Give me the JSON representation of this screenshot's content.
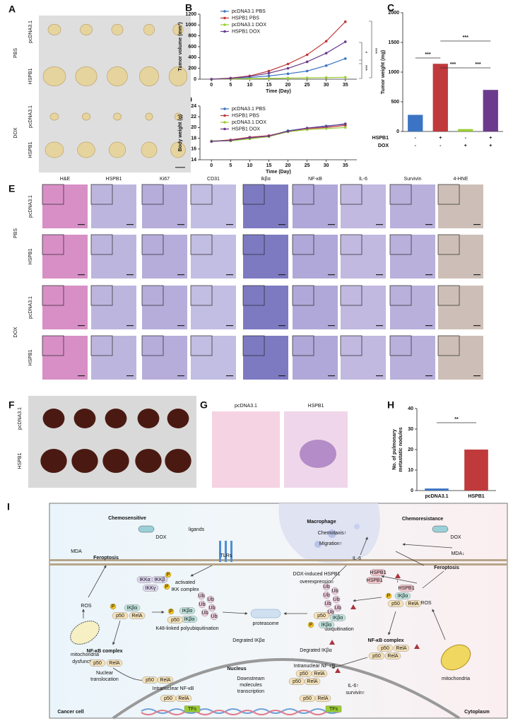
{
  "panels": [
    "A",
    "B",
    "C",
    "D",
    "E",
    "F",
    "G",
    "H",
    "I"
  ],
  "panel_a": {
    "treatments": [
      "PBS",
      "DOX"
    ],
    "groups": [
      "pcDNA3.1",
      "HSPB1",
      "pcDNA3.1",
      "HSPB1"
    ]
  },
  "panel_e": {
    "stains": [
      "H&E",
      "HSPB1",
      "Ki67",
      "CD31",
      "Ikβα",
      "NF-κB",
      "IL-6",
      "Survivin",
      "4-HNE"
    ],
    "treatments": [
      "PBS",
      "DOX"
    ],
    "groups": [
      "pcDNA3.1",
      "HSPB1",
      "pcDNA3.1",
      "HSPB1"
    ]
  },
  "panel_f": {
    "groups": [
      "pcDNA3.1",
      "HSPB1"
    ]
  },
  "panel_g": {
    "groups": [
      "pcDNA3.1",
      "HSPB1"
    ]
  },
  "chart_data": [
    {
      "type": "line",
      "ylabel": "Tumor volume (mm³)",
      "xlabel": "Time (Day)",
      "x": [
        0,
        5,
        10,
        15,
        20,
        25,
        30,
        35
      ],
      "xlim": [
        -3,
        38
      ],
      "xticks": [
        0,
        5,
        10,
        15,
        20,
        25,
        30,
        35
      ],
      "ylim": [
        0,
        1200
      ],
      "yticks": [
        0,
        200,
        400,
        600,
        800,
        1000,
        1200
      ],
      "series": [
        {
          "name": "pcDNA3.1 PBS",
          "color": "#3b74c4",
          "values": [
            0,
            10,
            30,
            60,
            100,
            150,
            250,
            380
          ]
        },
        {
          "name": "HSPB1 PBS",
          "color": "#c0393b",
          "values": [
            0,
            20,
            60,
            150,
            280,
            450,
            700,
            1060
          ]
        },
        {
          "name": "pcDNA3.1 DOX",
          "color": "#9acd32",
          "values": [
            0,
            5,
            10,
            15,
            20,
            25,
            30,
            35
          ]
        },
        {
          "name": "HSPB1 DOX",
          "color": "#6b3a8c",
          "values": [
            0,
            15,
            50,
            110,
            200,
            320,
            480,
            690
          ]
        }
      ],
      "annotations": [
        "*",
        "***",
        "***"
      ]
    },
    {
      "type": "bar",
      "ylabel": "Tumor weight (mg)",
      "ylim": [
        0,
        2000
      ],
      "yticks": [
        0,
        500,
        1000,
        1500,
        2000
      ],
      "values": [
        280,
        1140,
        40,
        700
      ],
      "colors": [
        "#3b74c4",
        "#c0393b",
        "#9acd32",
        "#6b3a8c"
      ],
      "rows": [
        {
          "name": "HSPB1",
          "signs": [
            "-",
            "+",
            "-",
            "+"
          ]
        },
        {
          "name": "DOX",
          "signs": [
            "-",
            "-",
            "+",
            "+"
          ]
        }
      ],
      "annotations": [
        "***",
        "***",
        "***",
        "***"
      ]
    },
    {
      "type": "line",
      "ylabel": "Body weight (g)",
      "xlabel": "Time (Day)",
      "x": [
        0,
        5,
        10,
        15,
        20,
        25,
        30,
        35
      ],
      "xlim": [
        -3,
        38
      ],
      "xticks": [
        0,
        5,
        10,
        15,
        20,
        25,
        30,
        35
      ],
      "ylim": [
        14,
        24
      ],
      "yticks": [
        14,
        16,
        18,
        20,
        22,
        24
      ],
      "series": [
        {
          "name": "pcDNA3.1 PBS",
          "color": "#3b74c4",
          "values": [
            17.5,
            17.6,
            18.0,
            18.4,
            19.4,
            19.9,
            20.3,
            20.6
          ]
        },
        {
          "name": "HSPB1 PBS",
          "color": "#c0393b",
          "values": [
            17.4,
            17.7,
            18.2,
            18.5,
            19.3,
            19.8,
            20.0,
            20.4
          ]
        },
        {
          "name": "pcDNA3.1 DOX",
          "color": "#9acd32",
          "values": [
            17.5,
            17.5,
            17.9,
            18.3,
            19.2,
            19.6,
            19.8,
            20.0
          ]
        },
        {
          "name": "HSPB1 DOX",
          "color": "#6b3a8c",
          "values": [
            17.4,
            17.6,
            18.1,
            18.4,
            19.3,
            19.9,
            20.2,
            20.7
          ]
        }
      ]
    },
    {
      "type": "bar",
      "ylabel": [
        "No. of pulmonary",
        "metastatic nodules"
      ],
      "categories": [
        "pcDNA3.1",
        "HSPB1"
      ],
      "ylim": [
        0,
        40
      ],
      "yticks": [
        0,
        10,
        20,
        30,
        40
      ],
      "values": [
        1,
        20
      ],
      "colors": [
        "#3b74c4",
        "#c0393b"
      ],
      "annotations": [
        "**"
      ]
    }
  ],
  "diagram": {
    "labels": [
      "Chemosensitive",
      "DOX",
      "MDA",
      "Feroptosis",
      "ligands",
      "TLRs",
      "Macrophage",
      "Chemotaxis↑",
      "Migration↑",
      "Chemoresistance",
      "DOX",
      "IL-6",
      "MDA↓",
      "Feroptosis",
      "activated",
      "IKK complex",
      "DOX-induced HSPB1",
      "overexpression",
      "ROS",
      "ROS",
      "K48-linked polyubiquitination",
      "proteasome",
      "ubiquitination",
      "Degrated IKβα",
      "Degrated IKβα",
      "NF-κB complex",
      "NF-κB complex",
      "mitochondria",
      "dysfunction",
      "mitochondria",
      "Nuclear",
      "translocation",
      "Nucleus",
      "Intranuclear NF-κB",
      "Intranuclear NF-κB",
      "Downstream",
      "molecules",
      "transcription",
      "IL-6↑",
      "survivin↑",
      "Cancer cell",
      "Cytoplasm"
    ],
    "molecules": {
      "ikba": "IKβα",
      "p50": "p50",
      "rela": "RelA",
      "hspb1": "HSPB1",
      "ub": "Ub",
      "tfs": "TFs",
      "ikka": "IKKα",
      "ikkb": "IKKβ",
      "ikkg": "IKKγ",
      "p": "P"
    }
  }
}
